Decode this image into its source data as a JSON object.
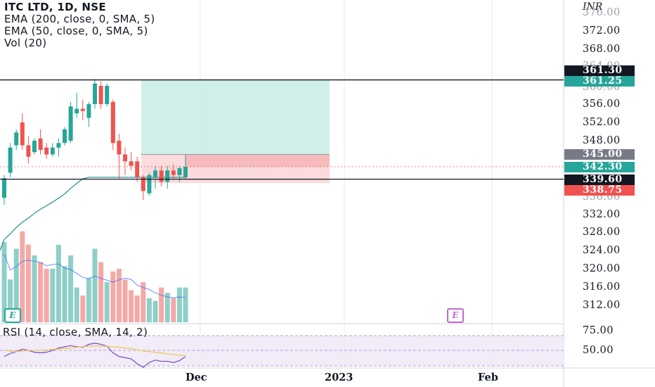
{
  "legend": {
    "title": "ITC LTD, 1D, NSE",
    "ema200": "EMA (200, close, 0, SMA, 5)",
    "ema50": "EMA (50, close, 0, SMA, 5)",
    "vol": "Vol (20)"
  },
  "rsi_legend": "RSI (14, close, SMA, 14, 2)",
  "currency": "INR",
  "price_ticks": [
    "372.00",
    "368.00",
    "356.00",
    "352.00",
    "348.00",
    "332.00",
    "328.00",
    "324.00",
    "320.00",
    "316.00",
    "312.00"
  ],
  "faded_ticks": [
    "376.00",
    "364.00",
    "360.00",
    "336.00"
  ],
  "rsi_ticks": [
    "75.00",
    "50.00"
  ],
  "badges": {
    "line_high": "361.30",
    "target": "361.25",
    "entry": "345.00",
    "last": "342.30",
    "line_low": "339.60",
    "stop": "338.75"
  },
  "time_labels": [
    "Dec",
    "2023",
    "Feb"
  ],
  "markers": {
    "earnings": "E"
  },
  "colors": {
    "up": "#26a69a",
    "down": "#ef5350",
    "up_vol": "#8fcfc8",
    "down_vol": "#f5a9a7",
    "profit_zone": "#cdeee7",
    "loss_zone": "#fbd9d9",
    "ema": "#2a8c94",
    "rsi": "#7e57c2",
    "rsi_ma": "#f0c75e",
    "earnings": "#c06ad0"
  },
  "chart_data": {
    "type": "candlestick",
    "symbol": "ITC LTD",
    "interval": "1D",
    "exchange": "NSE",
    "horizontal_lines": [
      361.3,
      339.6
    ],
    "position": {
      "target": 361.25,
      "entry": 345.0,
      "stop": 338.75
    },
    "last_price": 342.3,
    "candles": [
      {
        "o": 335.5,
        "h": 340.5,
        "l": 334.0,
        "c": 339.8
      },
      {
        "o": 341.0,
        "h": 347.5,
        "l": 340.0,
        "c": 346.5
      },
      {
        "o": 347.0,
        "h": 350.5,
        "l": 346.0,
        "c": 349.8
      },
      {
        "o": 352.0,
        "h": 354.0,
        "l": 346.0,
        "c": 347.0
      },
      {
        "o": 347.0,
        "h": 349.0,
        "l": 343.0,
        "c": 344.5
      },
      {
        "o": 345.5,
        "h": 348.5,
        "l": 345.0,
        "c": 348.0
      },
      {
        "o": 348.5,
        "h": 350.5,
        "l": 345.0,
        "c": 346.0
      },
      {
        "o": 346.5,
        "h": 347.5,
        "l": 344.0,
        "c": 345.0
      },
      {
        "o": 345.0,
        "h": 347.5,
        "l": 344.5,
        "c": 346.5
      },
      {
        "o": 346.5,
        "h": 348.5,
        "l": 344.5,
        "c": 347.5
      },
      {
        "o": 347.5,
        "h": 351.0,
        "l": 347.0,
        "c": 350.5
      },
      {
        "o": 348.0,
        "h": 356.5,
        "l": 347.5,
        "c": 355.5
      },
      {
        "o": 354.0,
        "h": 358.5,
        "l": 353.0,
        "c": 355.0
      },
      {
        "o": 355.0,
        "h": 357.0,
        "l": 352.5,
        "c": 354.5
      },
      {
        "o": 353.0,
        "h": 356.5,
        "l": 351.0,
        "c": 356.0
      },
      {
        "o": 356.0,
        "h": 361.5,
        "l": 355.0,
        "c": 360.5
      },
      {
        "o": 360.0,
        "h": 361.0,
        "l": 355.0,
        "c": 356.0
      },
      {
        "o": 356.0,
        "h": 360.5,
        "l": 355.5,
        "c": 360.0
      },
      {
        "o": 356.5,
        "h": 357.0,
        "l": 346.0,
        "c": 347.5
      },
      {
        "o": 348.0,
        "h": 349.5,
        "l": 339.5,
        "c": 345.0
      },
      {
        "o": 345.0,
        "h": 346.5,
        "l": 340.5,
        "c": 343.5
      },
      {
        "o": 343.5,
        "h": 345.5,
        "l": 341.5,
        "c": 342.5
      },
      {
        "o": 343.5,
        "h": 344.5,
        "l": 339.0,
        "c": 340.0
      },
      {
        "o": 340.0,
        "h": 340.5,
        "l": 335.0,
        "c": 337.0
      },
      {
        "o": 336.5,
        "h": 341.0,
        "l": 336.0,
        "c": 340.5
      },
      {
        "o": 340.0,
        "h": 342.5,
        "l": 337.5,
        "c": 341.5
      },
      {
        "o": 341.5,
        "h": 342.5,
        "l": 338.0,
        "c": 339.0
      },
      {
        "o": 339.0,
        "h": 342.5,
        "l": 337.5,
        "c": 341.5
      },
      {
        "o": 341.5,
        "h": 342.8,
        "l": 339.5,
        "c": 340.5
      },
      {
        "o": 340.5,
        "h": 342.5,
        "l": 339.0,
        "c": 342.0
      },
      {
        "o": 340.0,
        "h": 345.0,
        "l": 339.5,
        "c": 342.3
      }
    ],
    "volume": [
      60,
      32,
      55,
      68,
      58,
      50,
      45,
      40,
      40,
      58,
      42,
      50,
      26,
      20,
      33,
      55,
      45,
      30,
      38,
      40,
      32,
      24,
      20,
      30,
      18,
      16,
      26,
      22,
      18,
      26,
      26
    ],
    "rsi": [
      40,
      45,
      48,
      52,
      50,
      47,
      46,
      47,
      50,
      54,
      56,
      58,
      56,
      55,
      60,
      62,
      60,
      57,
      46,
      40,
      38,
      36,
      28,
      22,
      30,
      34,
      32,
      32,
      30,
      33,
      40
    ],
    "rsi_ma": [
      50,
      49,
      48,
      49,
      50,
      50,
      50,
      51,
      52,
      52,
      53,
      54,
      55,
      56,
      57,
      57,
      57,
      57,
      56,
      55,
      54,
      53,
      51,
      49,
      48,
      47,
      46,
      44,
      43,
      42,
      42
    ]
  }
}
